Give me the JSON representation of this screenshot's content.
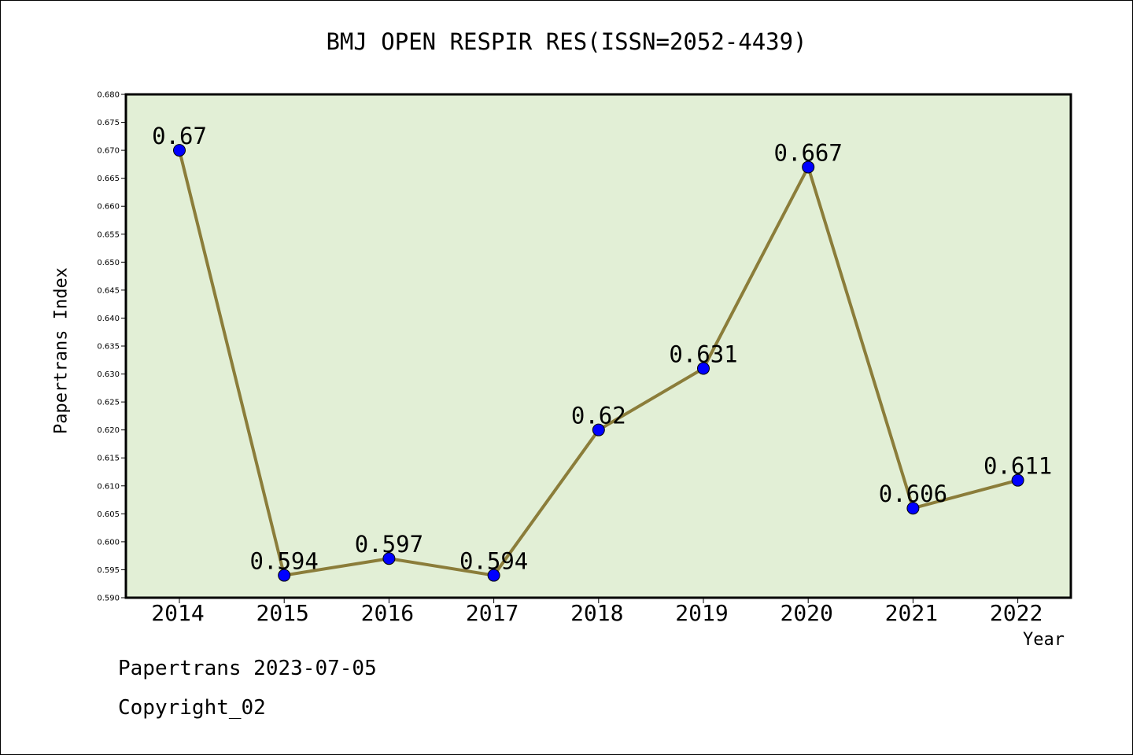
{
  "chart_data": {
    "type": "line",
    "title": "BMJ OPEN RESPIR RES(ISSN=2052-4439)",
    "xlabel": "Year",
    "ylabel": "Papertrans Index",
    "categories": [
      "2014",
      "2015",
      "2016",
      "2017",
      "2018",
      "2019",
      "2020",
      "2021",
      "2022"
    ],
    "series": [
      {
        "values": [
          0.67,
          0.594,
          0.597,
          0.594,
          0.62,
          0.631,
          0.667,
          0.606,
          0.611
        ],
        "labels": [
          "0.67",
          "0.594",
          "0.597",
          "0.594",
          "0.62",
          "0.631",
          "0.667",
          "0.606",
          "0.611"
        ]
      }
    ],
    "ylim": [
      0.59,
      0.68
    ],
    "yticks": [
      "0.590",
      "0.595",
      "0.600",
      "0.605",
      "0.610",
      "0.615",
      "0.620",
      "0.625",
      "0.630",
      "0.635",
      "0.640",
      "0.645",
      "0.650",
      "0.655",
      "0.660",
      "0.665",
      "0.670",
      "0.675",
      "0.680"
    ],
    "grid": false,
    "legend": "none",
    "colors": {
      "plot_background": "#e2efd6",
      "line": "#8b7d3a",
      "marker": "#0000ff"
    }
  },
  "footer": {
    "line1": "Papertrans 2023-07-05",
    "line2": "Copyright_02"
  }
}
